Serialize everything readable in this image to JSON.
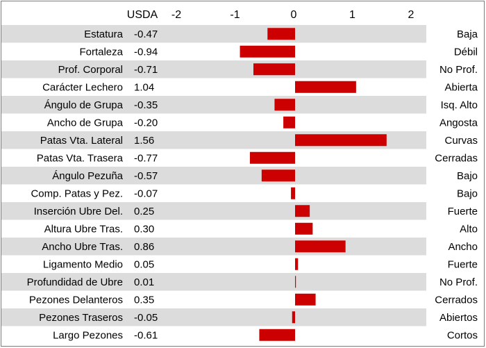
{
  "chart_data": {
    "type": "bar",
    "orientation": "horizontal",
    "value_column_header": "USDA",
    "xlim": [
      -2,
      2
    ],
    "ticks": [
      -2,
      -1,
      0,
      1,
      2
    ],
    "tick_labels": [
      "-2",
      "-1",
      "0",
      "1",
      "2"
    ],
    "bar_color": "#cc0000",
    "row_stripe_color": "#dcdcdc",
    "grid": false,
    "rows": [
      {
        "trait": "Estatura",
        "value_label": "-0.47",
        "value": -0.47,
        "descriptor": "Baja"
      },
      {
        "trait": "Fortaleza",
        "value_label": "-0.94",
        "value": -0.94,
        "descriptor": "Débil"
      },
      {
        "trait": "Prof. Corporal",
        "value_label": "-0.71",
        "value": -0.71,
        "descriptor": "No Prof."
      },
      {
        "trait": "Carácter Lechero",
        "value_label": "1.04",
        "value": 1.04,
        "descriptor": "Abierta"
      },
      {
        "trait": "Ángulo de Grupa",
        "value_label": "-0.35",
        "value": -0.35,
        "descriptor": "Isq. Alto"
      },
      {
        "trait": "Ancho de Grupa",
        "value_label": "-0.20",
        "value": -0.2,
        "descriptor": "Angosta"
      },
      {
        "trait": "Patas Vta. Lateral",
        "value_label": "1.56",
        "value": 1.56,
        "descriptor": "Curvas"
      },
      {
        "trait": "Patas Vta. Trasera",
        "value_label": "-0.77",
        "value": -0.77,
        "descriptor": "Cerradas"
      },
      {
        "trait": "Ángulo Pezuña",
        "value_label": "-0.57",
        "value": -0.57,
        "descriptor": "Bajo"
      },
      {
        "trait": "Comp. Patas y Pez.",
        "value_label": "-0.07",
        "value": -0.07,
        "descriptor": "Bajo"
      },
      {
        "trait": "Inserción Ubre Del.",
        "value_label": "0.25",
        "value": 0.25,
        "descriptor": "Fuerte"
      },
      {
        "trait": "Altura Ubre Tras.",
        "value_label": "0.30",
        "value": 0.3,
        "descriptor": "Alto"
      },
      {
        "trait": "Ancho Ubre Tras.",
        "value_label": "0.86",
        "value": 0.86,
        "descriptor": "Ancho"
      },
      {
        "trait": "Ligamento Medio",
        "value_label": "0.05",
        "value": 0.05,
        "descriptor": "Fuerte"
      },
      {
        "trait": "Profundidad de Ubre",
        "value_label": "0.01",
        "value": 0.01,
        "descriptor": "No Prof."
      },
      {
        "trait": "Pezones Delanteros",
        "value_label": "0.35",
        "value": 0.35,
        "descriptor": "Cerrados"
      },
      {
        "trait": "Pezones Traseros",
        "value_label": "-0.05",
        "value": -0.05,
        "descriptor": "Abiertos"
      },
      {
        "trait": "Largo Pezones",
        "value_label": "-0.61",
        "value": -0.61,
        "descriptor": "Cortos"
      }
    ]
  }
}
